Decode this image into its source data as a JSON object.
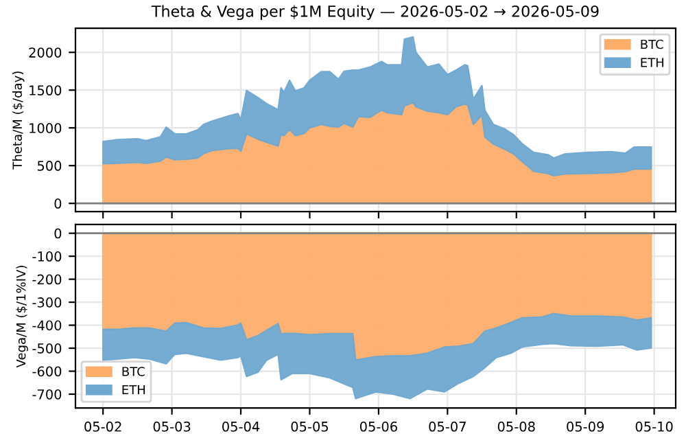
{
  "chart_data": [
    {
      "type": "area",
      "stacked": true,
      "title": "Theta & Vega per $1M Equity — 2026-05-02 → 2026-05-09",
      "ylabel": "Theta/M ($/day)",
      "x": [
        "2026-05-02T00:00",
        "2026-05-02T05:00",
        "2026-05-02T12:00",
        "2026-05-02T15:00",
        "2026-05-02T20:00",
        "2026-05-02T22:00",
        "2026-05-03T01:00",
        "2026-05-03T05:00",
        "2026-05-03T09:00",
        "2026-05-03T11:00",
        "2026-05-03T14:00",
        "2026-05-03T20:00",
        "2026-05-03T23:00",
        "2026-05-04T00:00",
        "2026-05-04T02:00",
        "2026-05-04T06:00",
        "2026-05-04T09:00",
        "2026-05-04T13:00",
        "2026-05-04T14:00",
        "2026-05-04T15:00",
        "2026-05-04T17:00",
        "2026-05-04T19:00",
        "2026-05-04T22:00",
        "2026-05-05T00:00",
        "2026-05-05T04:00",
        "2026-05-05T07:00",
        "2026-05-05T10:00",
        "2026-05-05T12:00",
        "2026-05-05T15:00",
        "2026-05-05T17:00",
        "2026-05-05T21:00",
        "2026-05-06T01:00",
        "2026-05-06T03:00",
        "2026-05-06T08:00",
        "2026-05-06T09:00",
        "2026-05-06T12:00",
        "2026-05-06T13:00",
        "2026-05-06T17:00",
        "2026-05-06T21:00",
        "2026-05-07T00:00",
        "2026-05-07T03:00",
        "2026-05-07T06:00",
        "2026-05-07T07:00",
        "2026-05-07T09:00",
        "2026-05-07T10:00",
        "2026-05-07T12:00",
        "2026-05-07T13:00",
        "2026-05-07T16:00",
        "2026-05-07T20:00",
        "2026-05-07T23:00",
        "2026-05-08T02:00",
        "2026-05-08T06:00",
        "2026-05-08T11:00",
        "2026-05-08T13:00",
        "2026-05-08T17:00",
        "2026-05-09T01:00",
        "2026-05-09T09:00",
        "2026-05-09T14:00",
        "2026-05-09T17:00",
        "2026-05-09T23:00"
      ],
      "series": [
        {
          "name": "BTC",
          "color": "#fdae6b",
          "values": [
            525,
            530,
            543,
            530,
            560,
            615,
            578,
            585,
            600,
            660,
            700,
            725,
            730,
            690,
            920,
            850,
            810,
            760,
            915,
            895,
            980,
            897,
            925,
            1000,
            1045,
            1020,
            1010,
            1060,
            1010,
            1150,
            1140,
            1235,
            1200,
            1175,
            1290,
            1335,
            1280,
            1220,
            1200,
            1175,
            1280,
            1315,
            1305,
            1045,
            1085,
            1175,
            880,
            785,
            715,
            655,
            555,
            425,
            395,
            365,
            390,
            395,
            405,
            420,
            455,
            455
          ]
        },
        {
          "name": "ETH",
          "color": "#6fa8d0",
          "values": [
            295,
            315,
            312,
            300,
            320,
            395,
            342,
            335,
            375,
            385,
            390,
            435,
            460,
            415,
            575,
            550,
            510,
            480,
            615,
            575,
            650,
            593,
            605,
            630,
            700,
            725,
            635,
            690,
            755,
            615,
            665,
            645,
            635,
            660,
            885,
            870,
            720,
            585,
            645,
            530,
            485,
            520,
            520,
            335,
            355,
            385,
            355,
            260,
            270,
            255,
            235,
            250,
            250,
            235,
            265,
            280,
            280,
            245,
            290,
            290
          ]
        }
      ],
      "xlim": [
        "2026-05-01T14:24",
        "2026-05-10T07:30"
      ],
      "ylim": [
        -110,
        2320
      ],
      "yticks": [
        0,
        500,
        1000,
        1500,
        2000
      ],
      "ref_lines": [
        {
          "axis": "y",
          "value": 0,
          "color": "#808080"
        }
      ],
      "grid": true,
      "legend": "top right",
      "tick_labels": "y"
    },
    {
      "type": "area",
      "stacked": true,
      "ylabel": "Vega/M ($/1%IV)",
      "x": [
        "2026-05-02T00:00",
        "2026-05-02T05:00",
        "2026-05-02T11:00",
        "2026-05-02T16:00",
        "2026-05-02T22:00",
        "2026-05-03T01:00",
        "2026-05-03T05:00",
        "2026-05-03T11:00",
        "2026-05-03T17:00",
        "2026-05-03T23:00",
        "2026-05-04T00:00",
        "2026-05-04T02:00",
        "2026-05-04T06:00",
        "2026-05-04T09:00",
        "2026-05-04T13:00",
        "2026-05-04T14:00",
        "2026-05-04T18:00",
        "2026-05-05T00:00",
        "2026-05-05T07:00",
        "2026-05-05T15:00",
        "2026-05-05T16:00",
        "2026-05-05T23:00",
        "2026-05-06T05:00",
        "2026-05-06T11:00",
        "2026-05-06T17:00",
        "2026-05-06T23:00",
        "2026-05-07T04:00",
        "2026-05-07T09:00",
        "2026-05-07T13:00",
        "2026-05-07T17:00",
        "2026-05-07T22:00",
        "2026-05-08T02:00",
        "2026-05-08T09:00",
        "2026-05-08T13:00",
        "2026-05-08T19:00",
        "2026-05-09T04:00",
        "2026-05-09T13:00",
        "2026-05-09T18:00",
        "2026-05-09T23:00"
      ],
      "series": [
        {
          "name": "BTC",
          "color": "#fdae6b",
          "values": [
            -418,
            -418,
            -412,
            -412,
            -426,
            -391,
            -389,
            -412,
            -414,
            -399,
            -391,
            -464,
            -445,
            -422,
            -393,
            -437,
            -435,
            -441,
            -437,
            -437,
            -552,
            -537,
            -533,
            -533,
            -522,
            -495,
            -491,
            -480,
            -426,
            -412,
            -389,
            -368,
            -364,
            -349,
            -360,
            -360,
            -364,
            -378,
            -368
          ]
        },
        {
          "name": "ETH",
          "color": "#6fa8d0",
          "values": [
            -134,
            -129,
            -129,
            -135,
            -142,
            -136,
            -133,
            -125,
            -138,
            -142,
            -142,
            -159,
            -159,
            -130,
            -134,
            -200,
            -175,
            -169,
            -192,
            -234,
            -167,
            -153,
            -167,
            -186,
            -155,
            -195,
            -161,
            -143,
            -159,
            -129,
            -133,
            -127,
            -119,
            -131,
            -129,
            -131,
            -121,
            -130,
            -131
          ]
        }
      ],
      "xlim": [
        "2026-05-01T14:24",
        "2026-05-10T07:30"
      ],
      "xticks": [
        {
          "value": "2026-05-02",
          "label": "05-02"
        },
        {
          "value": "2026-05-03",
          "label": "05-03"
        },
        {
          "value": "2026-05-04",
          "label": "05-04"
        },
        {
          "value": "2026-05-05",
          "label": "05-05"
        },
        {
          "value": "2026-05-06",
          "label": "05-06"
        },
        {
          "value": "2026-05-07",
          "label": "05-07"
        },
        {
          "value": "2026-05-08",
          "label": "05-08"
        },
        {
          "value": "2026-05-09",
          "label": "05-09"
        },
        {
          "value": "2026-05-10",
          "label": "05-10"
        }
      ],
      "ylim": [
        -760,
        38
      ],
      "yticks": [
        -700,
        -600,
        -500,
        -400,
        -300,
        -200,
        -100,
        0
      ],
      "ref_lines": [
        {
          "axis": "y",
          "value": 0,
          "color": "#808080"
        }
      ],
      "grid": true,
      "legend": "bottom left"
    }
  ]
}
